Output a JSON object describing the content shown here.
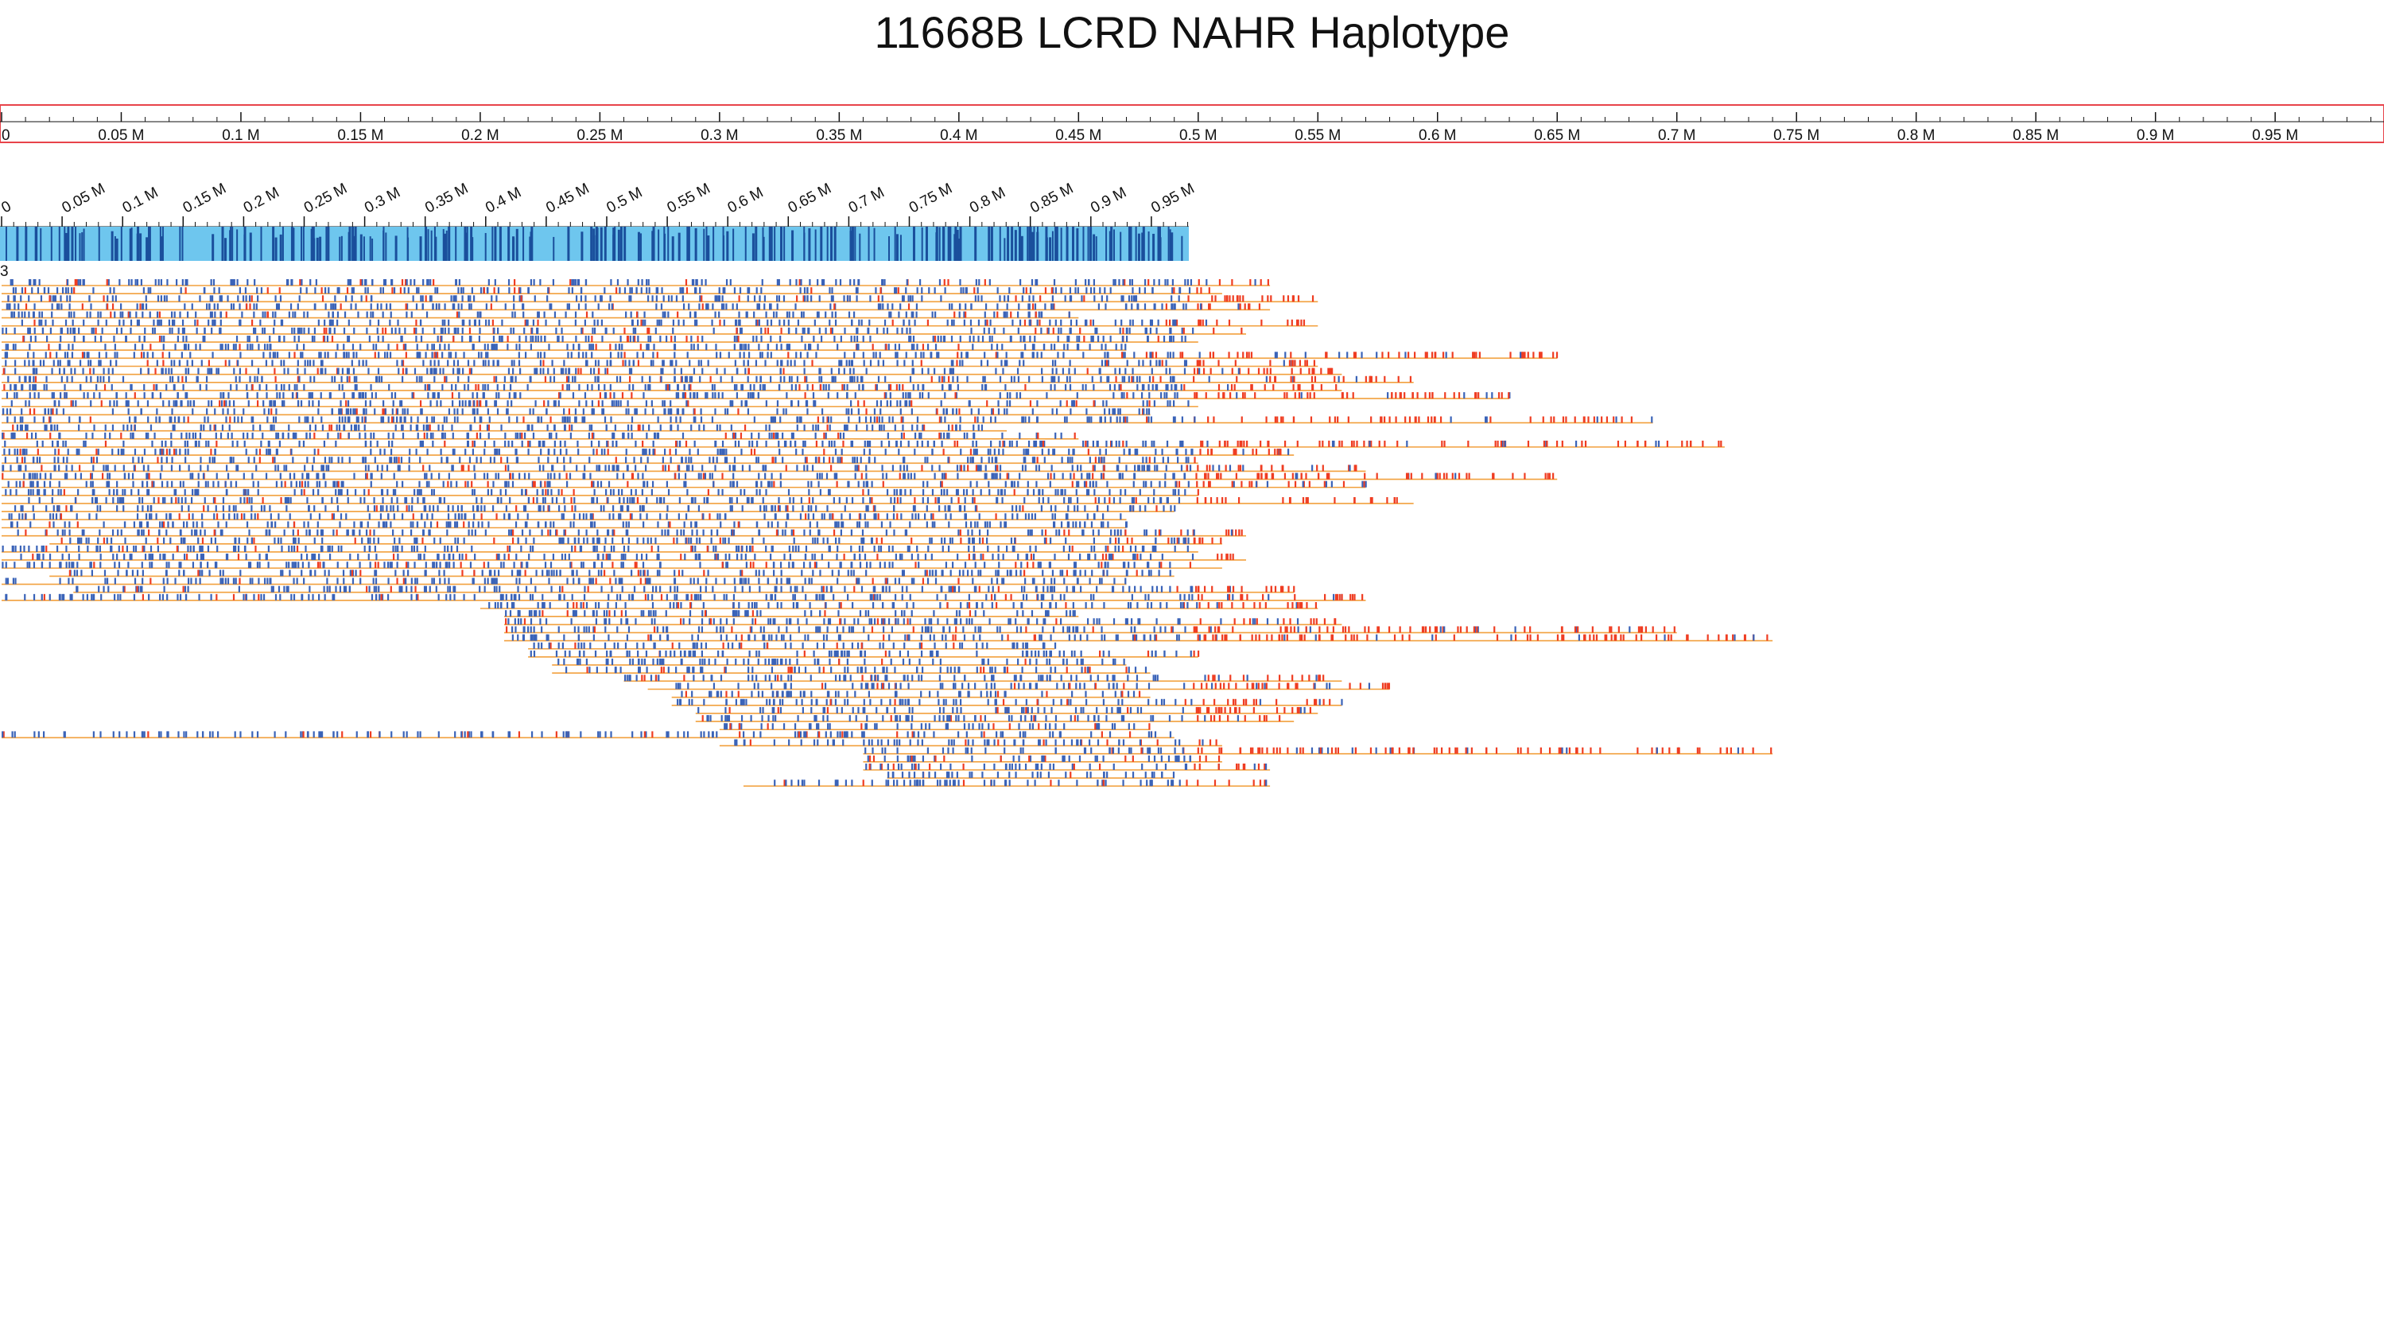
{
  "title": "11668B LCRD NAHR Haplotype",
  "colors": {
    "ruler_border": "#e8434a",
    "bar_fill": "#6ec6ee",
    "bar_tick": "#1a4f9c",
    "read_line": "#f2a03d",
    "match_tick": "#3a63b8",
    "mismatch_tick": "#ef3d22"
  },
  "top_axis": {
    "range": [
      0,
      1.0
    ],
    "tick_labels": [
      "0",
      "0.05 M",
      "0.1 M",
      "0.15 M",
      "0.2 M",
      "0.25 M",
      "0.3 M",
      "0.35 M",
      "0.4 M",
      "0.45 M",
      "0.5 M",
      "0.55 M",
      "0.6 M",
      "0.65 M",
      "0.7 M",
      "0.75 M",
      "0.8 M",
      "0.85 M",
      "0.9 M",
      "0.95 M"
    ]
  },
  "haplotype_axis": {
    "range": [
      0,
      1.0
    ],
    "tick_labels": [
      "0",
      "0.05 M",
      "0.1 M",
      "0.15 M",
      "0.2 M",
      "0.25 M",
      "0.3 M",
      "0.35 M",
      "0.4 M",
      "0.45 M",
      "0.5 M",
      "0.55 M",
      "0.6 M",
      "0.65 M",
      "0.7 M",
      "0.75 M",
      "0.8 M",
      "0.85 M",
      "0.9 M",
      "0.95 M"
    ]
  },
  "cluster_label": "3",
  "reads_summary": {
    "count": 63,
    "note_start_end_in_axis_units": "each read spans [start, end] in Mb on the top axis"
  },
  "reads": [
    [
      0.0,
      0.53
    ],
    [
      0.0,
      0.51
    ],
    [
      0.0,
      0.55
    ],
    [
      0.0,
      0.53
    ],
    [
      0.0,
      0.45
    ],
    [
      0.0,
      0.55
    ],
    [
      0.0,
      0.52
    ],
    [
      0.0,
      0.5
    ],
    [
      0.0,
      0.47
    ],
    [
      0.0,
      0.65
    ],
    [
      0.0,
      0.55
    ],
    [
      0.0,
      0.56
    ],
    [
      0.0,
      0.59
    ],
    [
      0.0,
      0.56
    ],
    [
      0.0,
      0.63
    ],
    [
      0.0,
      0.5
    ],
    [
      0.0,
      0.48
    ],
    [
      0.0,
      0.69
    ],
    [
      0.0,
      0.42
    ],
    [
      0.0,
      0.45
    ],
    [
      0.0,
      0.72
    ],
    [
      0.0,
      0.54
    ],
    [
      0.0,
      0.5
    ],
    [
      0.0,
      0.57
    ],
    [
      0.0,
      0.65
    ],
    [
      0.0,
      0.57
    ],
    [
      0.0,
      0.5
    ],
    [
      0.0,
      0.59
    ],
    [
      0.0,
      0.49
    ],
    [
      0.0,
      0.47
    ],
    [
      0.0,
      0.47
    ],
    [
      0.0,
      0.52
    ],
    [
      0.02,
      0.51
    ],
    [
      0.0,
      0.5
    ],
    [
      0.0,
      0.52
    ],
    [
      0.0,
      0.51
    ],
    [
      0.02,
      0.49
    ],
    [
      0.0,
      0.47
    ],
    [
      0.03,
      0.54
    ],
    [
      0.0,
      0.57
    ],
    [
      0.2,
      0.55
    ],
    [
      0.21,
      0.45
    ],
    [
      0.21,
      0.56
    ],
    [
      0.21,
      0.7
    ],
    [
      0.21,
      0.74
    ],
    [
      0.22,
      0.44
    ],
    [
      0.22,
      0.5
    ],
    [
      0.23,
      0.47
    ],
    [
      0.23,
      0.48
    ],
    [
      0.26,
      0.56
    ],
    [
      0.27,
      0.58
    ],
    [
      0.28,
      0.48
    ],
    [
      0.28,
      0.56
    ],
    [
      0.29,
      0.55
    ],
    [
      0.29,
      0.54
    ],
    [
      0.3,
      0.48
    ],
    [
      0.0,
      0.49
    ],
    [
      0.3,
      0.51
    ],
    [
      0.36,
      0.74
    ],
    [
      0.36,
      0.51
    ],
    [
      0.36,
      0.53
    ],
    [
      0.37,
      0.49
    ],
    [
      0.31,
      0.53
    ]
  ]
}
